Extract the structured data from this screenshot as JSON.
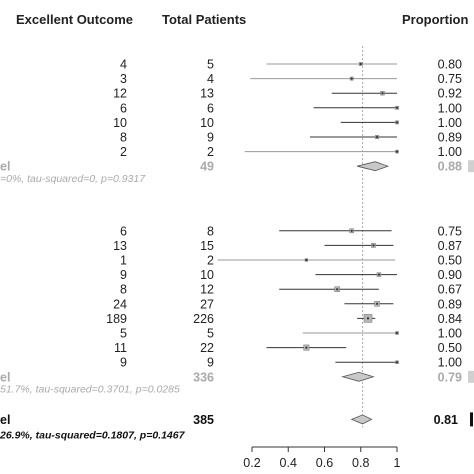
{
  "headers": {
    "events": "Excellent Outcome",
    "total": "Total Patients",
    "proportion": "Proportion"
  },
  "colors": {
    "ci_line": "#333333",
    "ci_line_light": "#999999",
    "box": "#b5b5b5",
    "diamond_fill": "#c8c8c8",
    "reference_line": "#aaaaaa",
    "summary_gray_text": "#aaaaaa"
  },
  "chart_data": {
    "type": "forest",
    "xlim": [
      0.2,
      1.0
    ],
    "x_ticks": [
      "0.2",
      "0.4",
      "0.6",
      "0.8",
      "1"
    ],
    "reference_line": 0.81,
    "groups": [
      {
        "studies": [
          {
            "events": "4",
            "total": "5",
            "proportion": "0.80",
            "est": 0.8,
            "lo": 0.28,
            "hi": 1.0,
            "weight": 1
          },
          {
            "events": "3",
            "total": "4",
            "proportion": "0.75",
            "est": 0.75,
            "lo": 0.19,
            "hi": 1.0,
            "weight": 1
          },
          {
            "events": "12",
            "total": "13",
            "proportion": "0.92",
            "est": 0.92,
            "lo": 0.64,
            "hi": 1.0,
            "weight": 1.3
          },
          {
            "events": "6",
            "total": "6",
            "proportion": "1.00",
            "est": 1.0,
            "lo": 0.54,
            "hi": 1.0,
            "weight": 1
          },
          {
            "events": "10",
            "total": "10",
            "proportion": "1.00",
            "est": 1.0,
            "lo": 0.69,
            "hi": 1.0,
            "weight": 1
          },
          {
            "events": "8",
            "total": "9",
            "proportion": "0.89",
            "est": 0.89,
            "lo": 0.52,
            "hi": 1.0,
            "weight": 1.1
          },
          {
            "events": "2",
            "total": "2",
            "proportion": "1.00",
            "est": 1.0,
            "lo": 0.16,
            "hi": 1.0,
            "weight": 0.9
          }
        ],
        "summary": {
          "label": "el",
          "total": "49",
          "proportion": "0.88",
          "est": 0.88,
          "lo": 0.78,
          "hi": 0.95,
          "style": "gray"
        },
        "heterogeneity": "=0%, tau-squared=0, p=0.9317"
      },
      {
        "studies": [
          {
            "events": "6",
            "total": "8",
            "proportion": "0.75",
            "est": 0.75,
            "lo": 0.35,
            "hi": 0.97,
            "weight": 1.4
          },
          {
            "events": "13",
            "total": "15",
            "proportion": "0.87",
            "est": 0.87,
            "lo": 0.6,
            "hi": 0.98,
            "weight": 1.4
          },
          {
            "events": "1",
            "total": "2",
            "proportion": "0.50",
            "est": 0.5,
            "lo": 0.01,
            "hi": 0.99,
            "weight": 0.8
          },
          {
            "events": "9",
            "total": "10",
            "proportion": "0.90",
            "est": 0.9,
            "lo": 0.55,
            "hi": 1.0,
            "weight": 1.3
          },
          {
            "events": "8",
            "total": "12",
            "proportion": "0.67",
            "est": 0.67,
            "lo": 0.35,
            "hi": 0.9,
            "weight": 1.8
          },
          {
            "events": "24",
            "total": "27",
            "proportion": "0.89",
            "est": 0.89,
            "lo": 0.71,
            "hi": 0.98,
            "weight": 1.8
          },
          {
            "events": "189",
            "total": "226",
            "proportion": "0.84",
            "est": 0.84,
            "lo": 0.78,
            "hi": 0.88,
            "weight": 3.2
          },
          {
            "events": "5",
            "total": "5",
            "proportion": "1.00",
            "est": 1.0,
            "lo": 0.48,
            "hi": 1.0,
            "weight": 0.9
          },
          {
            "events": "11",
            "total": "22",
            "proportion": "0.50",
            "est": 0.5,
            "lo": 0.28,
            "hi": 0.72,
            "weight": 2.0
          },
          {
            "events": "9",
            "total": "9",
            "proportion": "1.00",
            "est": 1.0,
            "lo": 0.66,
            "hi": 1.0,
            "weight": 0.9
          }
        ],
        "summary": {
          "label": "el",
          "total": "336",
          "proportion": "0.79",
          "est": 0.79,
          "lo": 0.7,
          "hi": 0.87,
          "style": "gray"
        },
        "heterogeneity": "51.7%, tau-squared=0.3701, p=0.0285"
      }
    ],
    "overall": {
      "label": "el",
      "total": "385",
      "proportion": "0.81",
      "est": 0.81,
      "lo": 0.75,
      "hi": 0.86,
      "style": "black"
    },
    "overall_heterogeneity": "26.9%, tau-squared=0.1807, p=0.1467"
  }
}
